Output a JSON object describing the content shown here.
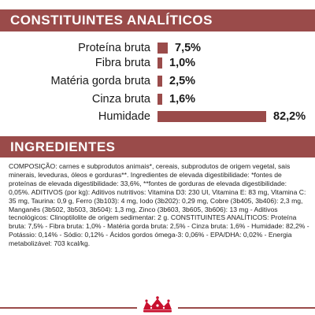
{
  "analytic": {
    "title": "CONSTITUINTES ANALÍTICOS",
    "rows": [
      {
        "label": "Proteína bruta",
        "value": "7,5%",
        "percent": 7.5
      },
      {
        "label": "Fibra bruta",
        "value": "1,0%",
        "percent": 1.0
      },
      {
        "label": "Matéria gorda bruta",
        "value": "2,5%",
        "percent": 2.5
      },
      {
        "label": "Cinza bruta",
        "value": "1,6%",
        "percent": 1.6
      },
      {
        "label": "Humidade",
        "value": "82,2%",
        "percent": 82.2
      }
    ]
  },
  "ingredients": {
    "title": "INGREDIENTES",
    "text": "COMPOSIÇÃO: carnes e subprodutos animais*, cereais, subprodutos de origem vegetal, sais minerais, leveduras, óleos e gorduras**. Ingredientes de elevada digestibilidade: *fontes de proteínas de elevada digestibilidade: 33,6%, **fontes de gorduras de elevada digestibilidade: 0,05%. ADITIVOS (por kg): Aditivos nutritivos: Vitamina D3: 230 UI, Vitamina E: 83 mg, Vitamina C: 35 mg, Taurina: 0,9 g, Ferro (3b103): 4 mg, Iodo (3b202): 0,29 mg, Cobre (3b405, 3b406): 2,3 mg, Manganês (3b502, 3b503, 3b504): 1,3 mg, Zinco (3b603, 3b605, 3b606): 13 mg - Aditivos tecnológicos: Clinoptilolite de origem sedimentar: 2 g. CONSTITUINTES ANALÍTICOS: Proteína bruta: 7,5% - Fibra bruta: 1,0% - Matéria gorda bruta: 2,5% - Cinza bruta: 1,6% - Humidade: 82,2% - Potássio: 0,14% - Sódio: 0,12% - Ácidos gordos ómega-3: 0,06% - EPA/DHA: 0,02% - Energia metabolizável: 703 kcal/kg."
  },
  "colors": {
    "accent": "#9a4b4a"
  },
  "footer": {
    "logo_icon": "crown-logo-icon"
  }
}
